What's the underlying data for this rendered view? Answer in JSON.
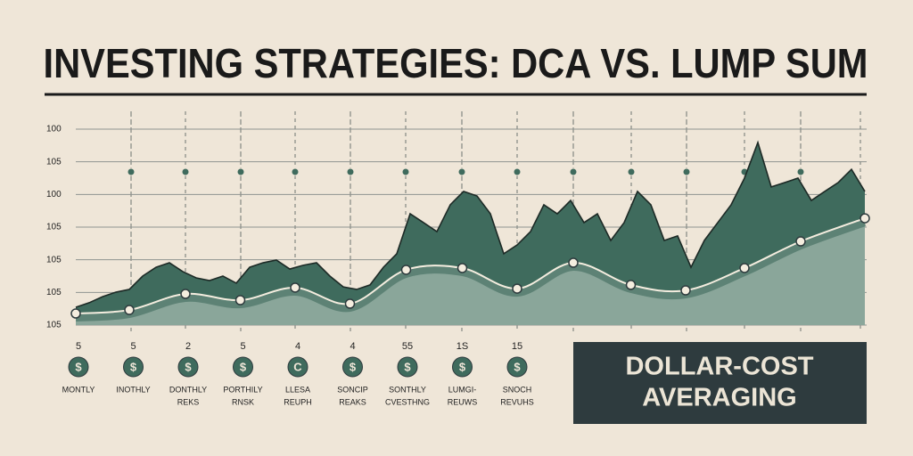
{
  "chart_data": {
    "type": "area",
    "title": "INVESTING STRATEGIES: DCA VS. LUMP SUM",
    "y_labels": [
      "100",
      "105",
      "100",
      "105",
      "105",
      "105",
      "105"
    ],
    "xlim": [
      0,
      59
    ],
    "ylim": [
      0,
      100
    ],
    "series": [
      {
        "color": "#3f6b5d",
        "x": [
          0,
          1,
          2,
          3,
          4,
          5,
          6,
          7,
          8,
          9,
          10,
          11,
          12,
          13,
          14,
          15,
          16,
          17,
          18,
          19,
          20,
          21,
          22,
          23,
          24,
          25,
          26,
          27,
          28,
          29,
          30,
          31,
          32,
          33,
          34,
          35,
          36,
          37,
          38,
          39,
          40,
          41,
          42,
          43,
          44,
          45,
          46,
          47,
          48,
          49,
          50,
          51,
          52,
          53,
          54,
          55,
          56,
          57,
          58,
          59
        ],
        "values": [
          9.1,
          11.4,
          14.5,
          16.8,
          18.2,
          25,
          29.5,
          31.8,
          27.3,
          24.1,
          22.7,
          25,
          21.4,
          29.5,
          31.8,
          33.2,
          28.6,
          30.5,
          31.8,
          25,
          19.5,
          18.2,
          20.5,
          29.5,
          36.4,
          56.8,
          52.3,
          47.7,
          61.4,
          68.2,
          65.9,
          56.8,
          36.4,
          40.9,
          47.7,
          61.4,
          56.8,
          63.6,
          52.3,
          56.8,
          43.2,
          52.3,
          68.2,
          61.4,
          43.2,
          45.5,
          29.5,
          43.2,
          52.3,
          61.4,
          75,
          93.2,
          70.5,
          72.7,
          75,
          63.6,
          68.2,
          72.7,
          79.5,
          68.2
        ]
      },
      {
        "color": "#8aa69a",
        "x": [
          0,
          4,
          8.2,
          12.3,
          16.4,
          20.5,
          24.7,
          28.9,
          33,
          37.2,
          41.5,
          45.6,
          50,
          54.2,
          59
        ],
        "values": [
          5.9,
          7.7,
          15.9,
          12.7,
          19.1,
          10.9,
          28.2,
          29.1,
          18.6,
          31.8,
          20.5,
          17.7,
          29.1,
          42.7,
          54.5
        ]
      }
    ],
    "items": [
      {
        "number": "5",
        "icon": "$",
        "label": [
          "MONTLY"
        ]
      },
      {
        "number": "5",
        "icon": "$",
        "label": [
          "INOTHLY"
        ]
      },
      {
        "number": "2",
        "icon": "$",
        "label": [
          "DONTHLY",
          "REKS"
        ]
      },
      {
        "number": "5",
        "icon": "$",
        "label": [
          "PORTHILY",
          "RNSK"
        ]
      },
      {
        "number": "4",
        "icon": "C",
        "label": [
          "LLESA",
          "REUPH"
        ]
      },
      {
        "number": "4",
        "icon": "$",
        "label": [
          "SONCIP",
          "REAKS"
        ]
      },
      {
        "number": "55",
        "icon": "$",
        "label": [
          "SONTHLY",
          "CVESTHNG"
        ]
      },
      {
        "number": "1S",
        "icon": "$",
        "label": [
          "LUMGI-",
          "REUWS"
        ]
      },
      {
        "number": "15",
        "icon": "$",
        "label": [
          "SNOCH",
          "REVUHS"
        ]
      }
    ],
    "legend_box": [
      "DOLLAR-COST",
      "AVERAGING"
    ]
  }
}
